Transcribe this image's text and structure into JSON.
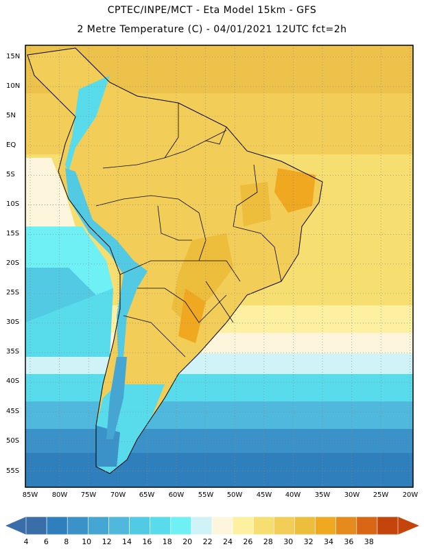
{
  "title_line1": "CPTEC/INPE/MCT -  Eta Model 15km - GFS",
  "title_line2": "2 Metre Temperature (C) - 04/01/2021 12UTC fct=2h",
  "lat_labels": [
    "15N",
    "10N",
    "5N",
    "EQ",
    "5S",
    "10S",
    "15S",
    "20S",
    "25S",
    "30S",
    "35S",
    "40S",
    "45S",
    "50S",
    "55S"
  ],
  "lon_labels": [
    "85W",
    "80W",
    "75W",
    "70W",
    "65W",
    "60W",
    "55W",
    "50W",
    "45W",
    "40W",
    "35W",
    "30W",
    "25W",
    "20W"
  ],
  "colorbar": {
    "labels": [
      "4",
      "6",
      "8",
      "10",
      "12",
      "14",
      "16",
      "18",
      "20",
      "22",
      "24",
      "26",
      "28",
      "30",
      "32",
      "34",
      "36",
      "38"
    ],
    "colors": [
      "#3a6ea8",
      "#2f7fbd",
      "#3a92c8",
      "#46a6d3",
      "#4fb8dc",
      "#52cae4",
      "#58dcec",
      "#6ef0f5",
      "#cff3f7",
      "#fdf5dc",
      "#fdf0a0",
      "#f7de70",
      "#f2ce58",
      "#edbd3c",
      "#f0a820",
      "#e58a1c",
      "#d86614",
      "#c4450c"
    ],
    "arrow_left_color": "#3a6ea8",
    "arrow_right_color": "#c4450c"
  }
}
